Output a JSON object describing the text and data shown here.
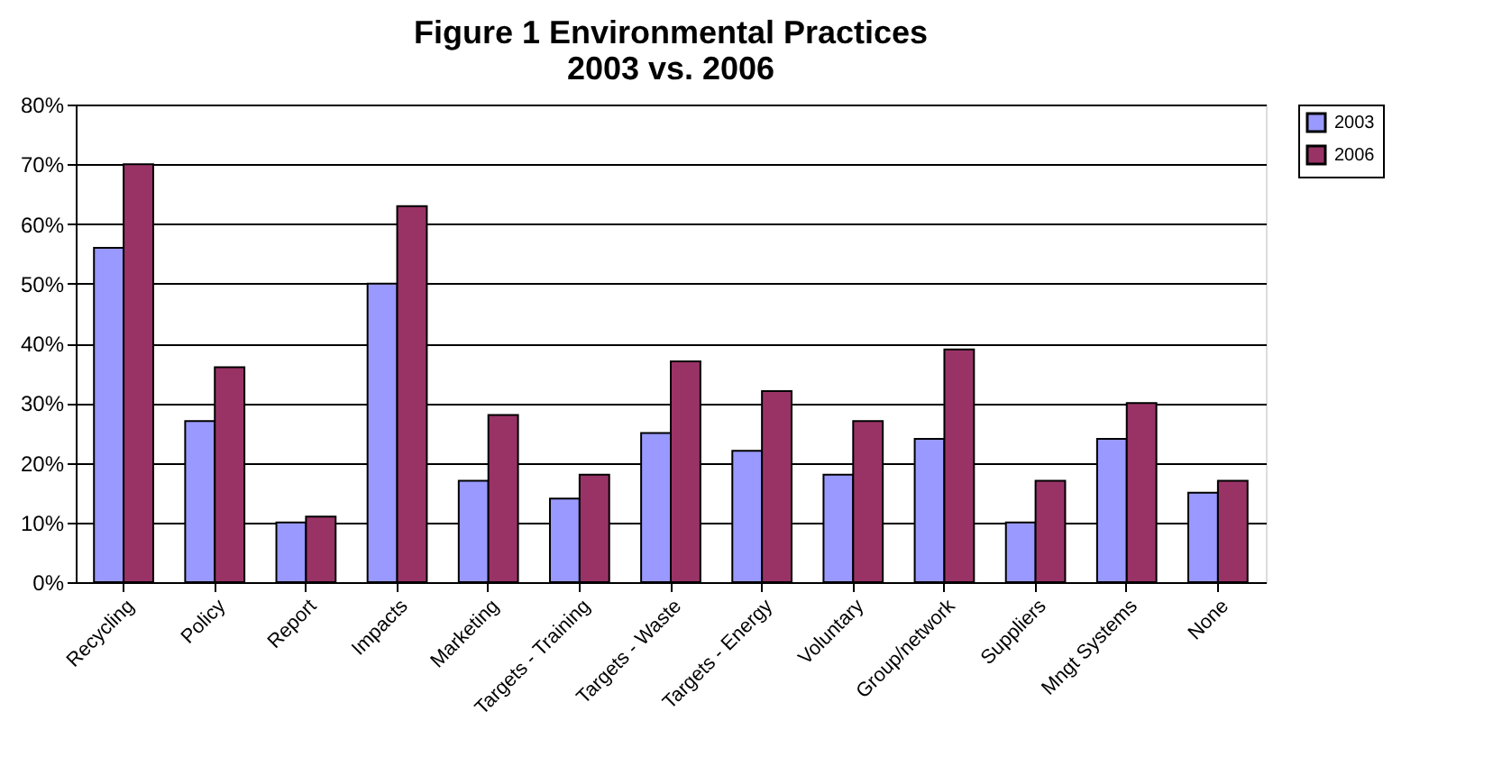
{
  "chart_data": {
    "type": "bar",
    "title": "Figure 1  Environmental Practices\n2003 vs. 2006",
    "categories": [
      "Recycling",
      "Policy",
      "Report",
      "Impacts",
      "Marketing",
      "Targets - Training",
      "Targets - Waste",
      "Targets - Energy",
      "Voluntary",
      "Group/network",
      "Suppliers",
      "Mngt Systems",
      "None"
    ],
    "series": [
      {
        "name": "2003",
        "color": "#9999ff",
        "values": [
          56,
          27,
          10,
          50,
          17,
          14,
          25,
          22,
          18,
          24,
          10,
          24,
          15
        ]
      },
      {
        "name": "2006",
        "color": "#993366",
        "values": [
          70,
          36,
          11,
          63,
          28,
          18,
          37,
          32,
          27,
          39,
          17,
          30,
          17
        ]
      }
    ],
    "ylim": [
      0,
      80
    ],
    "yticks": [
      {
        "value": 0,
        "label": "0%"
      },
      {
        "value": 10,
        "label": "10%"
      },
      {
        "value": 20,
        "label": "20%"
      },
      {
        "value": 30,
        "label": "30%"
      },
      {
        "value": 40,
        "label": "40%"
      },
      {
        "value": 50,
        "label": "50%"
      },
      {
        "value": 60,
        "label": "60%"
      },
      {
        "value": 70,
        "label": "70%"
      },
      {
        "value": 80,
        "label": "80%"
      }
    ],
    "grid": "y",
    "legend": "right"
  }
}
